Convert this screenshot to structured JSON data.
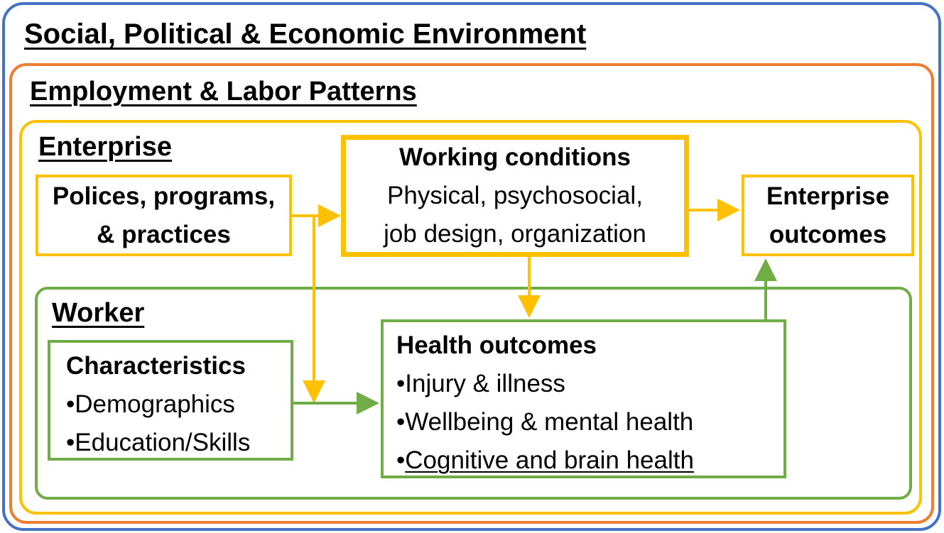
{
  "layers": {
    "social": "Social, Political & Economic Environment",
    "employment": "Employment & Labor Patterns",
    "enterprise": "Enterprise",
    "worker": "Worker"
  },
  "policies": {
    "line1": "Polices, programs,",
    "line2": "& practices"
  },
  "working_conditions": {
    "title": "Working conditions",
    "line1": "Physical, psychosocial,",
    "line2": "job design, organization"
  },
  "enterprise_outcomes": {
    "line1": "Enterprise",
    "line2": "outcomes"
  },
  "characteristics": {
    "title": "Characteristics",
    "bullet": "•",
    "items": [
      "Demographics",
      "Education/Skills"
    ]
  },
  "health_outcomes": {
    "title": "Health outcomes",
    "bullet": "•",
    "items": [
      "Injury & illness",
      "Wellbeing & mental health",
      "Cognitive and brain health"
    ]
  },
  "colors": {
    "social": "#4472c4",
    "employment": "#ed7d31",
    "enterprise": "#ffc000",
    "worker": "#70ad47"
  }
}
